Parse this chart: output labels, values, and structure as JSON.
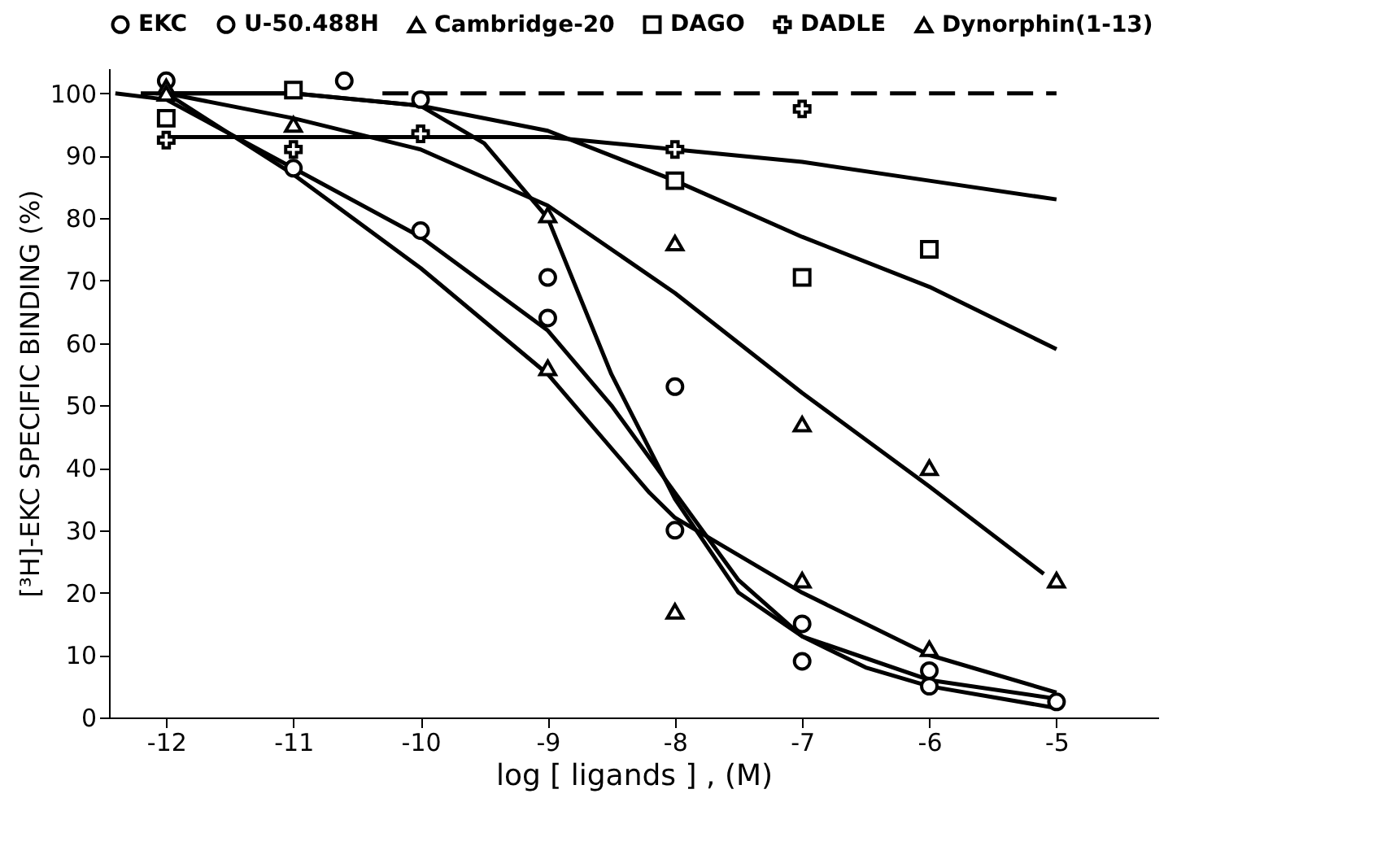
{
  "chart_data": {
    "type": "scatter",
    "xlabel": "log [ ligands ] , (M)",
    "ylabel": "[³H]-EKC SPECIFIC BINDING (%)",
    "xlim": [
      -12.45,
      -4.2
    ],
    "ylim": [
      0,
      104
    ],
    "xticks": [
      -12,
      -11,
      -10,
      -9,
      -8,
      -7,
      -6,
      -5
    ],
    "yticks": [
      0,
      10,
      20,
      30,
      40,
      50,
      60,
      70,
      80,
      90,
      100
    ],
    "grid": false,
    "legend": "top",
    "series": [
      {
        "name": "EKC",
        "marker": "circle",
        "color": "#000000",
        "x": [
          -11,
          -10,
          -9,
          -8,
          -7,
          -6,
          -5
        ],
        "values": [
          88,
          78,
          64,
          30,
          9,
          5,
          2.5
        ]
      },
      {
        "name": "U-50.488H",
        "marker": "circle",
        "color": "#000000",
        "x": [
          -12,
          -10.6,
          -10,
          -9,
          -8,
          -7,
          -6
        ],
        "values": [
          102,
          102,
          99,
          70.5,
          53,
          15,
          7.5
        ]
      },
      {
        "name": "Cambridge-20",
        "marker": "triangle",
        "color": "#000000",
        "x": [
          -12,
          -9,
          -8,
          -7,
          -6
        ],
        "values": [
          101,
          56,
          17,
          22,
          11
        ]
      },
      {
        "name": "DAGO",
        "marker": "square",
        "color": "#000000",
        "x": [
          -12,
          -11,
          -8,
          -7,
          -6
        ],
        "values": [
          96,
          100.5,
          86,
          70.5,
          75
        ]
      },
      {
        "name": "DADLE",
        "marker": "cross",
        "color": "#000000",
        "x": [
          -12,
          -11,
          -10,
          -8,
          -7
        ],
        "values": [
          92.5,
          91,
          93.5,
          91,
          97.5
        ]
      },
      {
        "name": "Dynorphin(1-13)",
        "marker": "triangle",
        "color": "#000000",
        "x": [
          -12,
          -11,
          -9,
          -8,
          -7,
          -6,
          -5
        ],
        "values": [
          100,
          95,
          80.5,
          76,
          47,
          40,
          22
        ]
      },
      {
        "type": "line",
        "color": "#000000",
        "line_style": "solid",
        "x": [
          -12.4,
          -12,
          -11,
          -10,
          -9,
          -8.5,
          -8,
          -7.5,
          -7,
          -6.5,
          -6,
          -5
        ],
        "values": [
          100,
          99,
          88,
          77,
          62,
          50,
          36,
          22,
          13,
          8,
          5,
          1.5
        ]
      },
      {
        "type": "line",
        "color": "#000000",
        "line_style": "solid",
        "x": [
          -12,
          -11,
          -10,
          -9,
          -8.2,
          -8,
          -7,
          -6,
          -5
        ],
        "values": [
          100,
          87,
          72,
          55,
          36,
          32,
          20,
          10,
          4
        ]
      },
      {
        "type": "line",
        "color": "#000000",
        "line_style": "solid",
        "x": [
          -12.2,
          -11,
          -10,
          -9.5,
          -9,
          -8.5,
          -8,
          -7.5,
          -7,
          -6,
          -5
        ],
        "values": [
          100,
          100,
          98,
          92,
          80,
          55,
          35,
          20,
          13,
          6,
          3
        ]
      },
      {
        "type": "line",
        "color": "#000000",
        "line_style": "solid",
        "x": [
          -12,
          -11,
          -10,
          -9,
          -8,
          -7,
          -6,
          -5.1
        ],
        "values": [
          100,
          96,
          91,
          82,
          68,
          52,
          37,
          23
        ]
      },
      {
        "type": "line",
        "color": "#000000",
        "line_style": "solid",
        "x": [
          -12,
          -11,
          -10,
          -9,
          -8,
          -7,
          -6,
          -5
        ],
        "values": [
          100,
          100,
          98,
          94,
          86,
          77,
          69,
          59
        ]
      },
      {
        "type": "line",
        "color": "#000000",
        "line_style": "solid",
        "x": [
          -12,
          -11,
          -10,
          -9,
          -8,
          -7,
          -6,
          -5
        ],
        "values": [
          93,
          93,
          93,
          93,
          91,
          89,
          86,
          83
        ]
      },
      {
        "type": "line",
        "color": "#000000",
        "line_style": "dashed",
        "x": [
          -10.3,
          -5
        ],
        "values": [
          100,
          100
        ]
      }
    ]
  }
}
